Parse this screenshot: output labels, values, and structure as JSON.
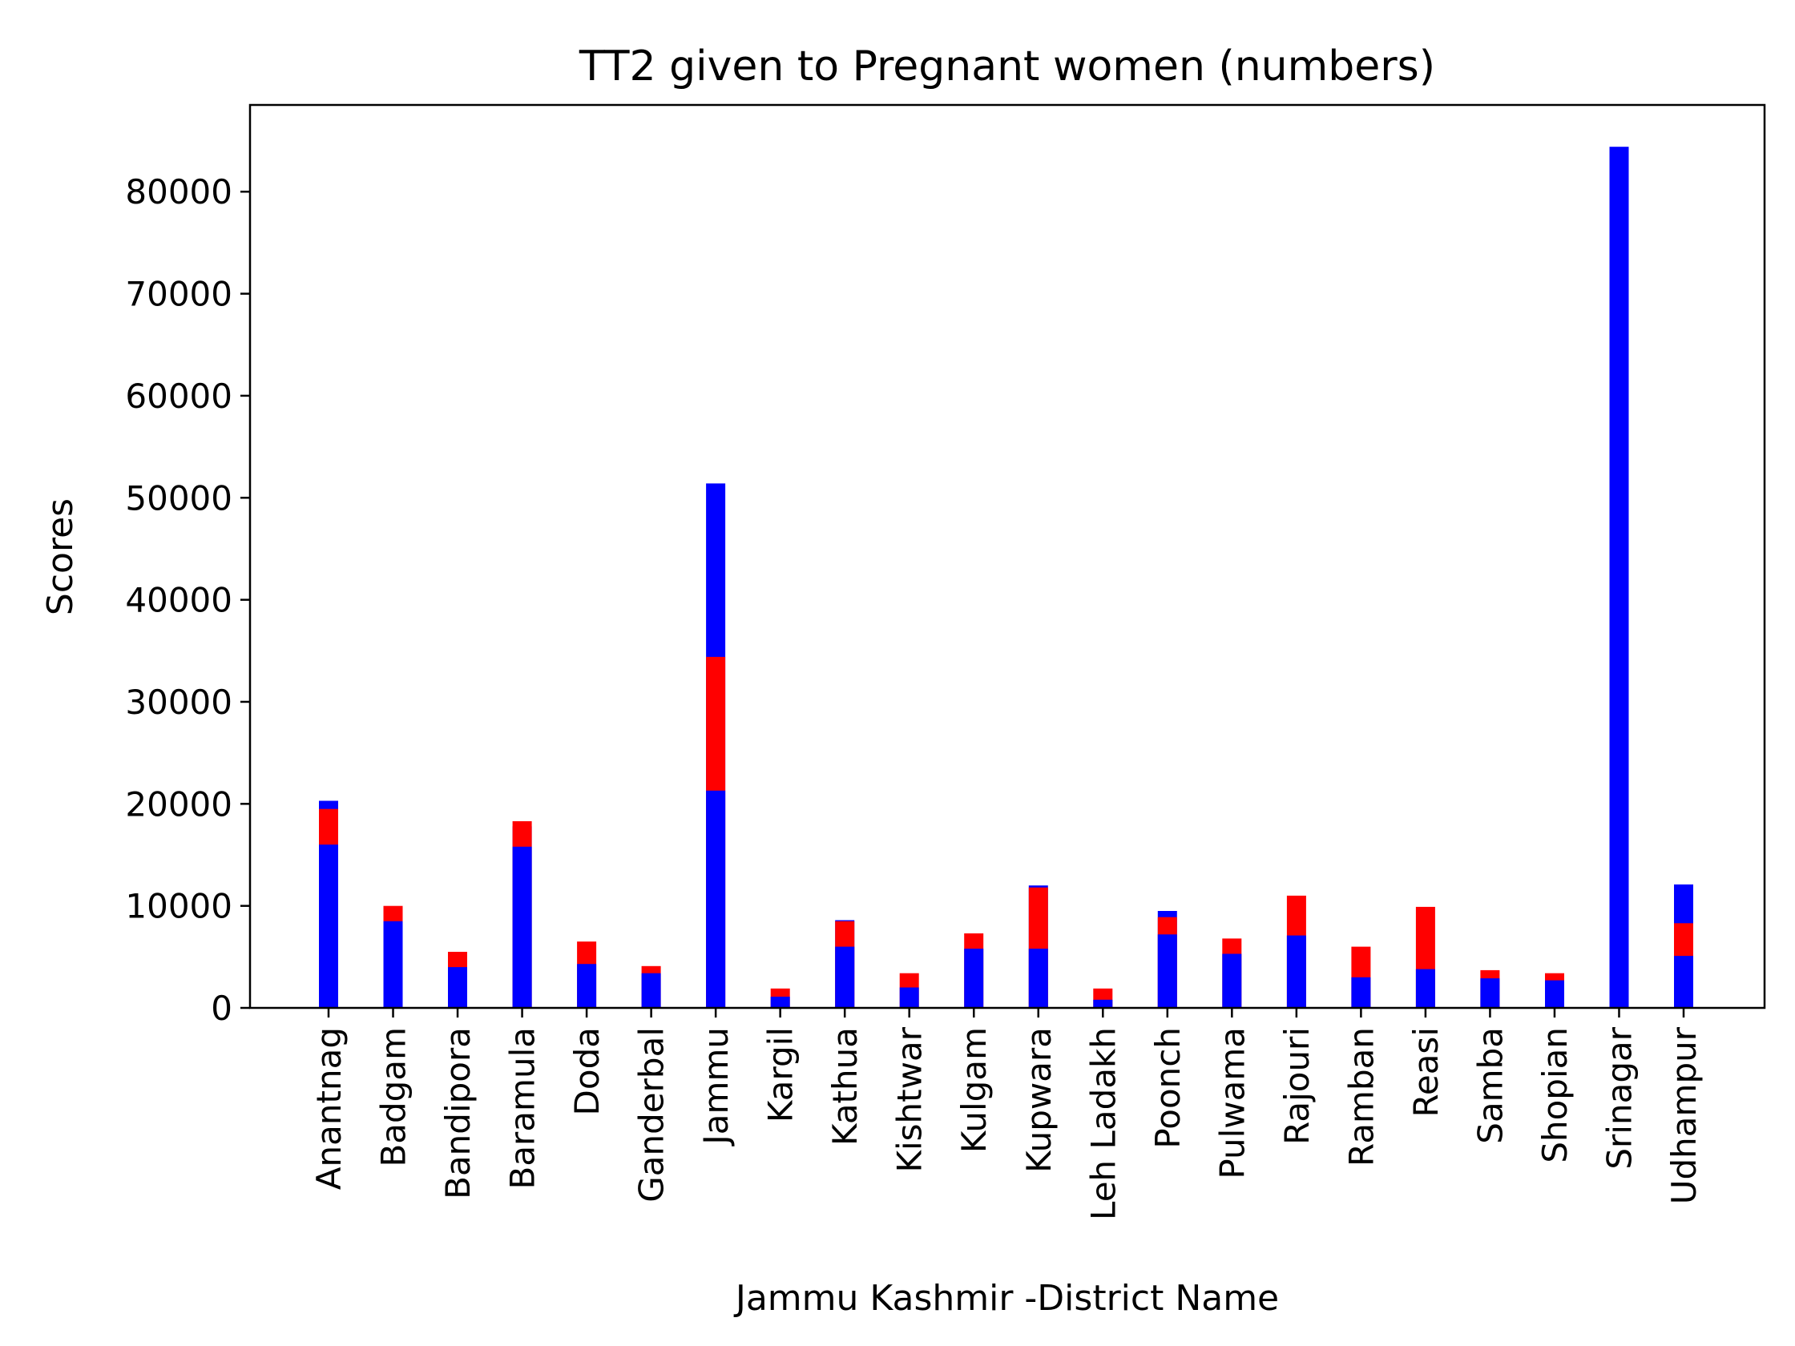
{
  "chart_data": {
    "type": "bar",
    "stacked": "overlaid",
    "title": "TT2 given to Pregnant women (numbers)",
    "xlabel": "Jammu Kashmir -District Name",
    "ylabel": "Scores",
    "ylim": [
      0,
      88500
    ],
    "yticks": [
      0,
      10000,
      20000,
      30000,
      40000,
      50000,
      60000,
      70000,
      80000
    ],
    "grid": false,
    "legend": "none",
    "colors": {
      "blue": "#0000ff",
      "red": "#ff0000"
    },
    "categories": [
      "Anantnag",
      "Badgam",
      "Bandipora",
      "Baramula",
      "Doda",
      "Ganderbal",
      "Jammu",
      "Kargil",
      "Kathua",
      "Kishtwar",
      "Kulgam",
      "Kupwara",
      "Leh Ladakh",
      "Poonch",
      "Pulwama",
      "Rajouri",
      "Ramban",
      "Reasi",
      "Samba",
      "Shopian",
      "Srinagar",
      "Udhampur"
    ],
    "layers": [
      {
        "color": "#0000ff",
        "values": [
          20300,
          9400,
          0,
          17800,
          0,
          0,
          51400,
          0,
          8600,
          0,
          0,
          12000,
          0,
          9500,
          0,
          0,
          0,
          0,
          0,
          0,
          84400,
          12100
        ]
      },
      {
        "color": "#ff0000",
        "values": [
          19500,
          10000,
          5500,
          18300,
          6500,
          4100,
          34400,
          1900,
          8500,
          3400,
          7300,
          11800,
          1900,
          8900,
          6800,
          11000,
          6000,
          9900,
          3700,
          3400,
          0,
          8300
        ]
      },
      {
        "color": "#0000ff",
        "values": [
          16000,
          8500,
          4000,
          15800,
          4300,
          3400,
          21300,
          1100,
          6000,
          2000,
          5800,
          5800,
          800,
          7200,
          5300,
          7100,
          3000,
          3800,
          2900,
          2700,
          0,
          5100
        ]
      }
    ]
  }
}
